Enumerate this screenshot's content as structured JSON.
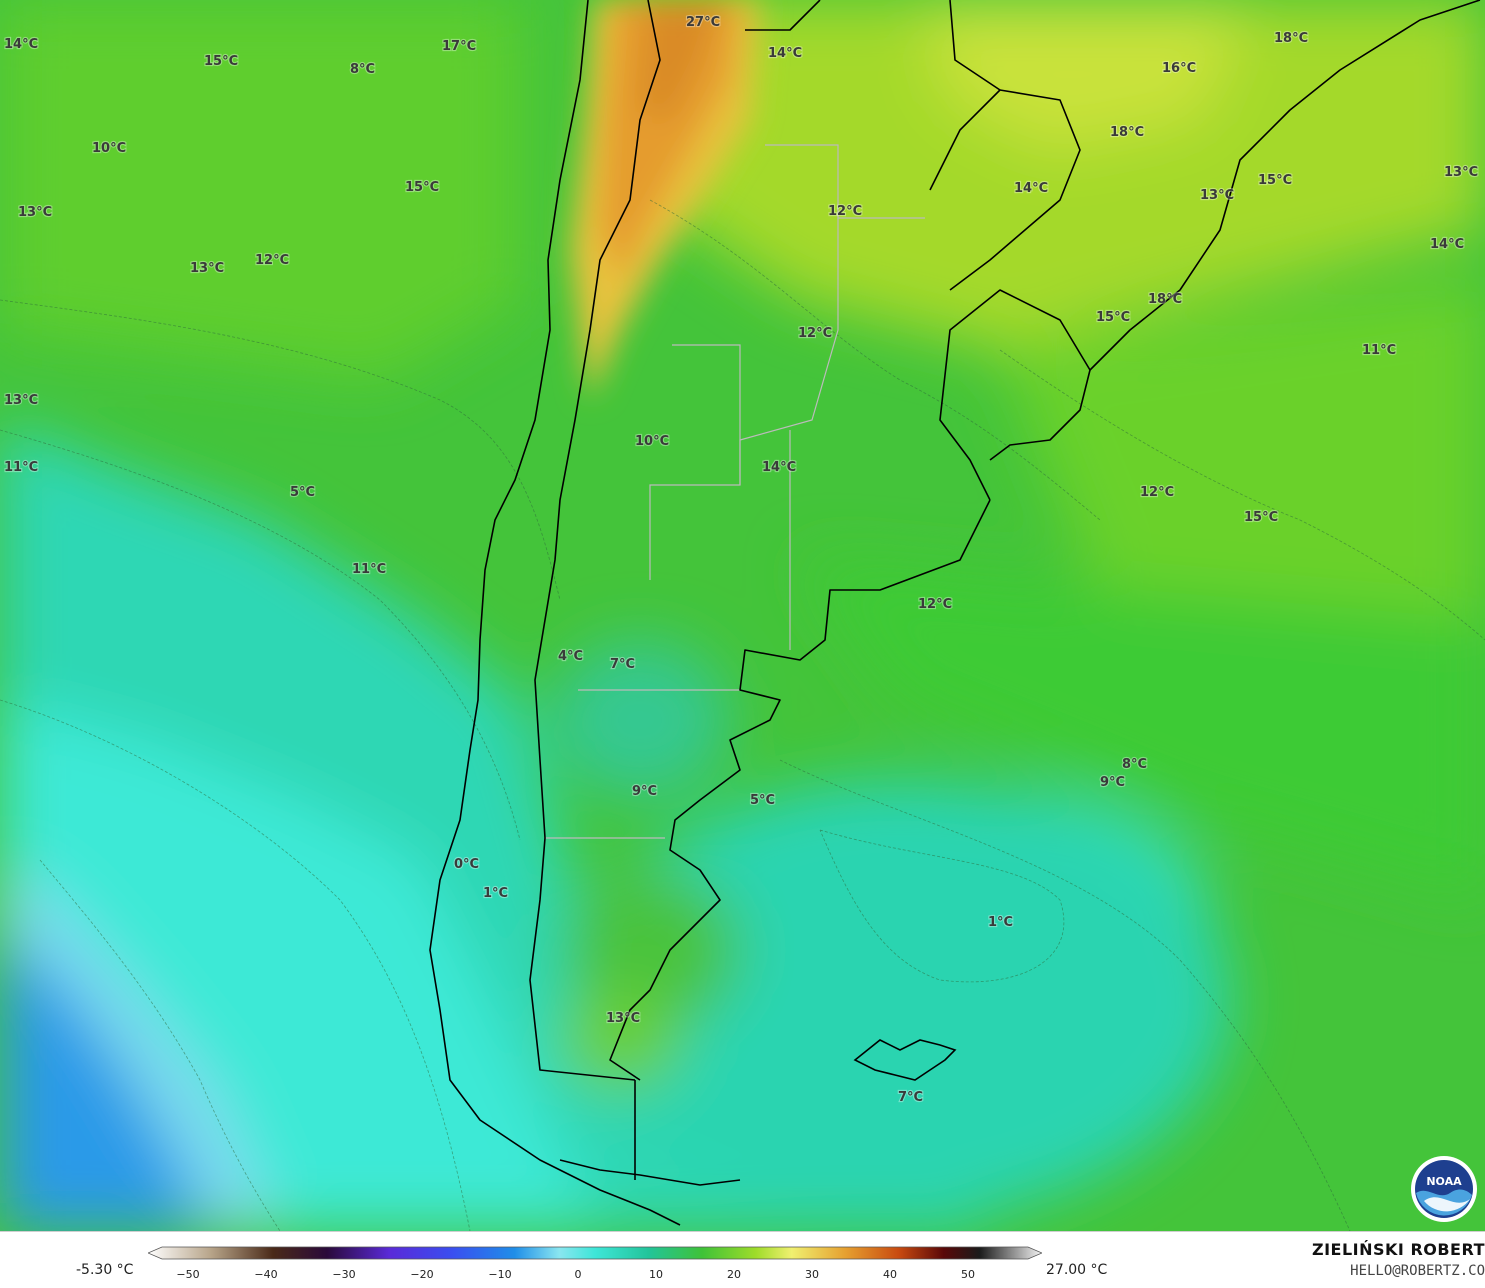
{
  "colors": {
    "ocean_cold": "#1f8ee8",
    "ocean_cool": "#3ee6d8",
    "sea_mid": "#22c4a0",
    "green": "#3fc238",
    "green_light": "#7fd52a",
    "yellow": "#d7e64a",
    "orange": "#e6a030",
    "border": "#000000",
    "province_border": "#bbbbbb"
  },
  "map": {
    "labels": [
      {
        "text": "14°C"
      },
      {
        "text": "15°C"
      },
      {
        "text": "8°C"
      },
      {
        "text": "17°C"
      },
      {
        "text": "27°C"
      },
      {
        "text": "14°C"
      },
      {
        "text": "18°C"
      },
      {
        "text": "16°C"
      },
      {
        "text": "10°C"
      },
      {
        "text": "15°C"
      },
      {
        "text": "18°C"
      },
      {
        "text": "13°C"
      },
      {
        "text": "15°C"
      },
      {
        "text": "13°C"
      },
      {
        "text": "13°C"
      },
      {
        "text": "12°C"
      },
      {
        "text": "12°C"
      },
      {
        "text": "14°C"
      },
      {
        "text": "14°C"
      },
      {
        "text": "18°C"
      },
      {
        "text": "15°C"
      },
      {
        "text": "12°C"
      },
      {
        "text": "11°C"
      },
      {
        "text": "13°C"
      },
      {
        "text": "13°C"
      },
      {
        "text": "10°C"
      },
      {
        "text": "11°C"
      },
      {
        "text": "14°C"
      },
      {
        "text": "5°C"
      },
      {
        "text": "12°C"
      },
      {
        "text": "15°C"
      },
      {
        "text": "11°C"
      },
      {
        "text": "12°C"
      },
      {
        "text": "4°C"
      },
      {
        "text": "7°C"
      },
      {
        "text": "8°C"
      },
      {
        "text": "9°C"
      },
      {
        "text": "9°C"
      },
      {
        "text": "5°C"
      },
      {
        "text": "0°C"
      },
      {
        "text": "1°C"
      },
      {
        "text": "1°C"
      },
      {
        "text": "13°C"
      },
      {
        "text": "7°C"
      }
    ]
  },
  "legend": {
    "min_value": "-5.30 °C",
    "max_value": "27.00 °C",
    "ticks": [
      "−50",
      "−40",
      "−30",
      "−20",
      "−10",
      "0",
      "10",
      "20",
      "30",
      "40",
      "50"
    ]
  },
  "credit": {
    "name": "ZIELIŃSKI ROBERT",
    "email": "HELLO@ROBERTZ.CO"
  },
  "logo": {
    "text": "NOAA"
  }
}
